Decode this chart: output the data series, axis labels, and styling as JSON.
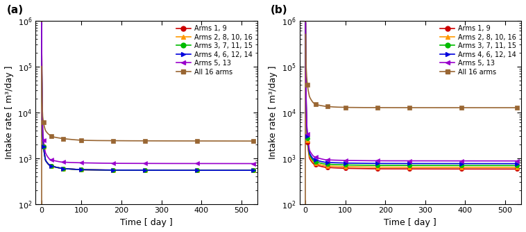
{
  "panel_labels": [
    "(a)",
    "(b)"
  ],
  "xlabel": "Time [ day ]",
  "ylabel": "Intake rate [ m³/day ]",
  "xlim": [
    -15,
    540
  ],
  "ylim": [
    100.0,
    1000000.0
  ],
  "xticks": [
    0,
    100,
    200,
    300,
    400,
    500
  ],
  "legend_entries": [
    {
      "label": "Arms 1, 9",
      "color": "#cc0000",
      "marker": "o"
    },
    {
      "label": "Arms 2, 8, 10, 16",
      "color": "#ff9900",
      "marker": "^"
    },
    {
      "label": "Arms 3, 7, 11, 15",
      "color": "#00bb00",
      "marker": "o"
    },
    {
      "label": "Arms 4, 6, 12, 14",
      "color": "#0000dd",
      "marker": ">"
    },
    {
      "label": "Arms 5, 13",
      "color": "#9900cc",
      "marker": "<"
    },
    {
      "label": "All 16 arms",
      "color": "#996633",
      "marker": "s"
    }
  ],
  "panel_a": {
    "spike_top": 1000000.0,
    "spike_x": 0.3,
    "series": {
      "arms19": {
        "t_knots": [
          0.3,
          3,
          10,
          20,
          50,
          100,
          180,
          260,
          390,
          530
        ],
        "v_knots": [
          900000.0,
          3000,
          900,
          700,
          600,
          560,
          548,
          545,
          543,
          543
        ]
      },
      "arms28": {
        "t_knots": [
          0.3,
          3,
          10,
          20,
          50,
          100,
          180,
          260,
          390,
          530
        ],
        "v_knots": [
          900000.0,
          3000,
          900,
          700,
          600,
          560,
          548,
          545,
          543,
          543
        ]
      },
      "arms37": {
        "t_knots": [
          0.3,
          3,
          10,
          20,
          50,
          100,
          180,
          260,
          390,
          530
        ],
        "v_knots": [
          900000.0,
          3000,
          900,
          700,
          600,
          560,
          548,
          545,
          543,
          543
        ]
      },
      "arms46": {
        "t_knots": [
          0.3,
          3,
          10,
          20,
          50,
          100,
          180,
          260,
          390,
          530
        ],
        "v_knots": [
          900000.0,
          3000,
          900,
          700,
          600,
          560,
          548,
          545,
          543,
          543
        ]
      },
      "arms513": {
        "t_knots": [
          0.3,
          3,
          10,
          20,
          50,
          100,
          180,
          260,
          390,
          530
        ],
        "v_knots": [
          900000.0,
          4000,
          1300,
          950,
          820,
          790,
          770,
          765,
          762,
          760
        ]
      },
      "all16": {
        "t_knots": [
          0.3,
          3,
          10,
          20,
          30,
          50,
          75,
          100,
          130,
          180,
          260,
          390,
          530
        ],
        "v_knots": [
          100000.0,
          8000,
          4000,
          3200,
          2900,
          2700,
          2550,
          2450,
          2420,
          2400,
          2380,
          2370,
          2360
        ]
      }
    },
    "marker_t": [
      5,
      25,
      55,
      100,
      180,
      260,
      390,
      530
    ]
  },
  "panel_b": {
    "spike_top": 1000000.0,
    "spike_x": 0.3,
    "series": {
      "arms19": {
        "t_knots": [
          0.3,
          3,
          10,
          20,
          50,
          100,
          180,
          260,
          390,
          530
        ],
        "v_knots": [
          900000.0,
          4000,
          1000,
          750,
          630,
          600,
          585,
          582,
          580,
          578
        ]
      },
      "arms28": {
        "t_knots": [
          0.3,
          3,
          10,
          20,
          50,
          100,
          180,
          260,
          390,
          530
        ],
        "v_knots": [
          900000.0,
          4500,
          1100,
          800,
          680,
          650,
          635,
          632,
          630,
          628
        ]
      },
      "arms37": {
        "t_knots": [
          0.3,
          3,
          10,
          20,
          50,
          100,
          180,
          260,
          390,
          530
        ],
        "v_knots": [
          900000.0,
          5000,
          1200,
          870,
          740,
          710,
          695,
          692,
          690,
          688
        ]
      },
      "arms46": {
        "t_knots": [
          0.3,
          3,
          10,
          20,
          50,
          100,
          180,
          260,
          390,
          530
        ],
        "v_knots": [
          900000.0,
          5500,
          1300,
          950,
          810,
          780,
          765,
          762,
          760,
          758
        ]
      },
      "arms513": {
        "t_knots": [
          0.3,
          3,
          10,
          20,
          50,
          100,
          180,
          260,
          390,
          530
        ],
        "v_knots": [
          900000.0,
          6000,
          1500,
          1100,
          920,
          890,
          875,
          872,
          870,
          868
        ]
      },
      "all16": {
        "t_knots": [
          0.3,
          3,
          10,
          20,
          30,
          50,
          75,
          100,
          130,
          180,
          260,
          390,
          530
        ],
        "v_knots": [
          500000.0,
          60000,
          22000,
          16000,
          14500,
          13500,
          13000,
          12800,
          12700,
          12650,
          12620,
          12600,
          12600
        ]
      }
    },
    "marker_t": [
      5,
      25,
      55,
      100,
      180,
      260,
      390,
      530
    ]
  },
  "background_color": "#ffffff"
}
